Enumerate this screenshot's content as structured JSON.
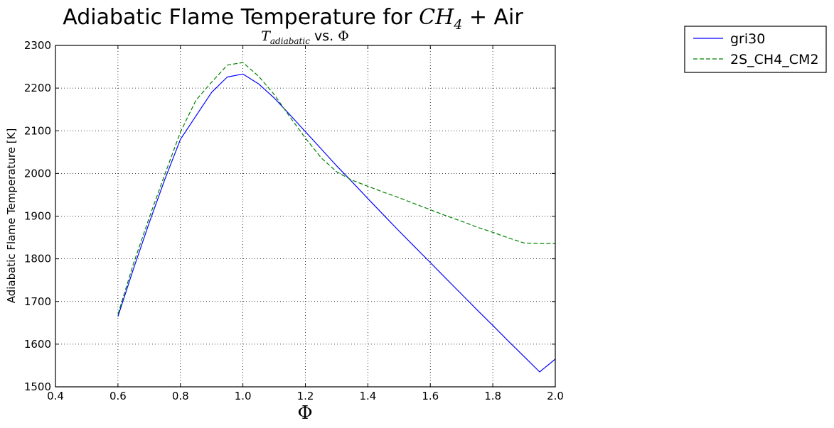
{
  "chart_data": {
    "type": "line",
    "title": {
      "prefix": "Adiabatic Flame Temperature for ",
      "math": "CH",
      "math_sub": "4",
      "suffix": " + Air"
    },
    "subtitle": {
      "math": "T",
      "math_sub": "adiabatic",
      "middle": " vs. ",
      "symbol": "Φ"
    },
    "xlabel": "Φ",
    "ylabel": "Adiabatic Flame Temperature [K]",
    "xlim": [
      0.4,
      2.0
    ],
    "ylim": [
      1500,
      2300
    ],
    "xticks": [
      "0.4",
      "0.6",
      "0.8",
      "1.0",
      "1.2",
      "1.4",
      "1.6",
      "1.8",
      "2.0"
    ],
    "yticks": [
      "1500",
      "1600",
      "1700",
      "1800",
      "1900",
      "2000",
      "2100",
      "2200",
      "2300"
    ],
    "grid": true,
    "legend_position": "outside upper right",
    "series": [
      {
        "name": "gri30",
        "color": "#0000ff",
        "dash": "solid",
        "x": [
          0.6,
          0.65,
          0.7,
          0.75,
          0.8,
          0.85,
          0.9,
          0.95,
          1.0,
          1.05,
          1.1,
          1.15,
          1.2,
          1.25,
          1.3,
          1.35,
          1.4,
          1.45,
          1.5,
          1.55,
          1.6,
          1.65,
          1.7,
          1.75,
          1.8,
          1.85,
          1.9,
          1.95,
          2.0
        ],
        "values": [
          1665,
          1777,
          1884,
          1986,
          2080,
          2135,
          2190,
          2226,
          2233,
          2210,
          2177,
          2138,
          2098,
          2058,
          2018,
          1980,
          1941,
          1903,
          1865,
          1828,
          1791,
          1754,
          1717,
          1680,
          1644,
          1607,
          1571,
          1535,
          1565
        ]
      },
      {
        "name": "2S_CH4_CM2",
        "color": "#008000",
        "dash": "dashed",
        "x": [
          0.6,
          0.65,
          0.7,
          0.75,
          0.8,
          0.85,
          0.9,
          0.95,
          1.0,
          1.05,
          1.1,
          1.15,
          1.2,
          1.25,
          1.3,
          1.35,
          1.4,
          1.45,
          1.5,
          1.55,
          1.6,
          1.65,
          1.7,
          1.75,
          1.8,
          1.85,
          1.9,
          1.95,
          2.0
        ],
        "values": [
          1670,
          1789,
          1896,
          1998,
          2097,
          2172,
          2214,
          2254,
          2260,
          2228,
          2185,
          2133,
          2083,
          2037,
          2004,
          1984,
          1970,
          1956,
          1943,
          1929,
          1915,
          1901,
          1888,
          1874,
          1862,
          1849,
          1837,
          1836,
          1836
        ]
      }
    ]
  }
}
